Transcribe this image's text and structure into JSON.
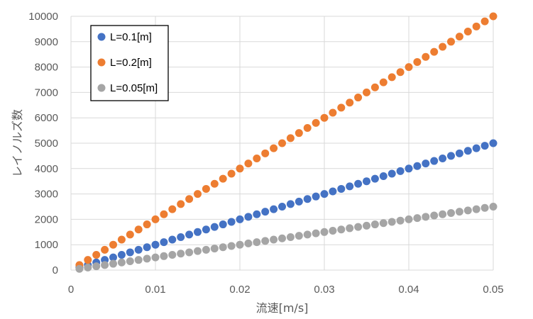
{
  "chart_data": {
    "type": "scatter",
    "title": "",
    "xlabel": "流速[m/s]",
    "ylabel": "レイノルズ数",
    "xlim": [
      0,
      0.05
    ],
    "ylim": [
      0,
      10000
    ],
    "x_ticks": [
      "0",
      "0.01",
      "0.02",
      "0.03",
      "0.04",
      "0.05"
    ],
    "y_ticks": [
      "0",
      "1000",
      "2000",
      "3000",
      "4000",
      "5000",
      "6000",
      "7000",
      "8000",
      "9000",
      "10000"
    ],
    "grid": true,
    "legend_position": "top-left",
    "x": [
      0.001,
      0.002,
      0.003,
      0.004,
      0.005,
      0.006,
      0.007,
      0.008,
      0.009,
      0.01,
      0.011,
      0.012,
      0.013,
      0.014,
      0.015,
      0.016,
      0.017,
      0.018,
      0.019,
      0.02,
      0.021,
      0.022,
      0.023,
      0.024,
      0.025,
      0.026,
      0.027,
      0.028,
      0.029,
      0.03,
      0.031,
      0.032,
      0.033,
      0.034,
      0.035,
      0.036,
      0.037,
      0.038,
      0.039,
      0.04,
      0.041,
      0.042,
      0.043,
      0.044,
      0.045,
      0.046,
      0.047,
      0.048,
      0.049,
      0.05
    ],
    "series": [
      {
        "name": "L=0.1[m]",
        "color": "#4472C4",
        "values": [
          100,
          200,
          300,
          400,
          500,
          600,
          700,
          800,
          900,
          1000,
          1100,
          1200,
          1300,
          1400,
          1500,
          1600,
          1700,
          1800,
          1900,
          2000,
          2100,
          2200,
          2300,
          2400,
          2500,
          2600,
          2700,
          2800,
          2900,
          3000,
          3100,
          3200,
          3300,
          3400,
          3500,
          3600,
          3700,
          3800,
          3900,
          4000,
          4100,
          4200,
          4300,
          4400,
          4500,
          4600,
          4700,
          4800,
          4900,
          5000
        ]
      },
      {
        "name": "L=0.2[m]",
        "color": "#ED7D31",
        "values": [
          200,
          400,
          600,
          800,
          1000,
          1200,
          1400,
          1600,
          1800,
          2000,
          2200,
          2400,
          2600,
          2800,
          3000,
          3200,
          3400,
          3600,
          3800,
          4000,
          4200,
          4400,
          4600,
          4800,
          5000,
          5200,
          5400,
          5600,
          5800,
          6000,
          6200,
          6400,
          6600,
          6800,
          7000,
          7200,
          7400,
          7600,
          7800,
          8000,
          8200,
          8400,
          8600,
          8800,
          9000,
          9200,
          9400,
          9600,
          9800,
          10000
        ]
      },
      {
        "name": "L=0.05[m]",
        "color": "#A5A5A5",
        "values": [
          50,
          100,
          150,
          200,
          250,
          300,
          350,
          400,
          450,
          500,
          550,
          600,
          650,
          700,
          750,
          800,
          850,
          900,
          950,
          1000,
          1050,
          1100,
          1150,
          1200,
          1250,
          1300,
          1350,
          1400,
          1450,
          1500,
          1550,
          1600,
          1650,
          1700,
          1750,
          1800,
          1850,
          1900,
          1950,
          2000,
          2050,
          2100,
          2150,
          2200,
          2250,
          2300,
          2350,
          2400,
          2450,
          2500
        ]
      }
    ]
  }
}
